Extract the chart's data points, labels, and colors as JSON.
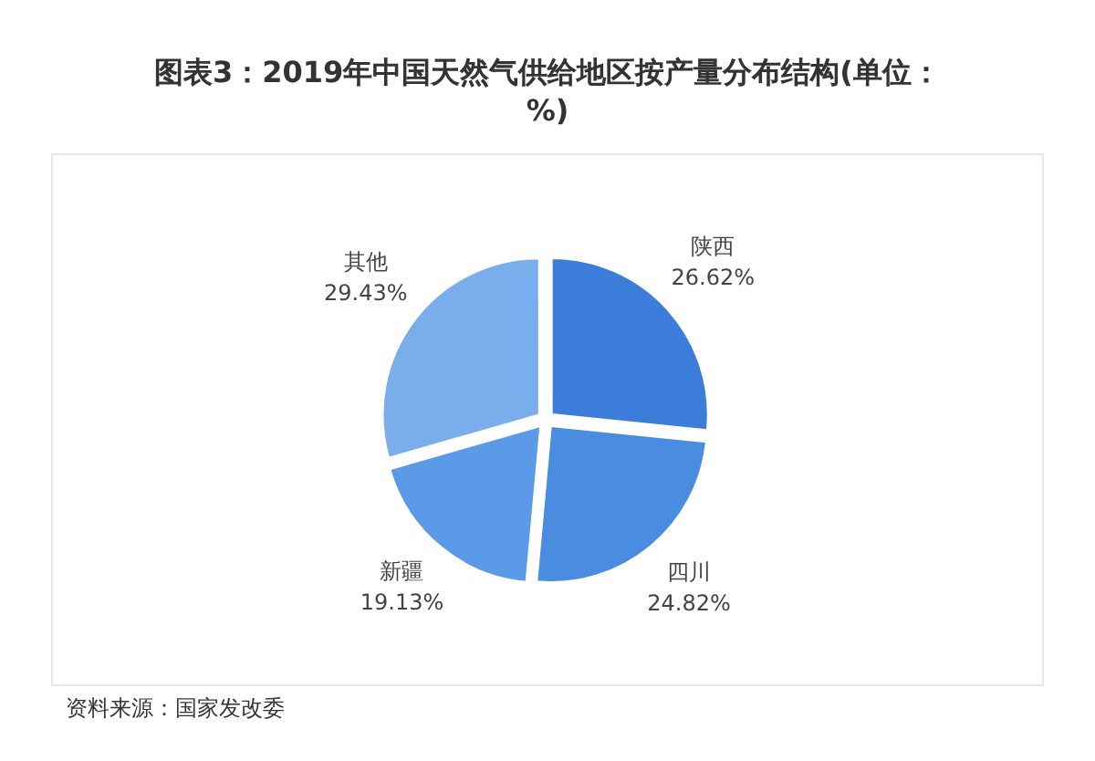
{
  "chart_data": {
    "type": "pie",
    "title": "图表3：2019年中国天然气供给地区按产量分布结构(单位：%)",
    "categories": [
      "陕西",
      "四川",
      "新疆",
      "其他"
    ],
    "values": [
      26.62,
      24.82,
      19.13,
      29.43
    ],
    "value_labels": [
      "26.62%",
      "24.82%",
      "19.13%",
      "29.43%"
    ],
    "colors": [
      "#3b7dd8",
      "#4a8ce0",
      "#5a9ae6",
      "#79adec"
    ],
    "legend": false,
    "annotations": [
      "资料来源：国家发改委"
    ]
  }
}
